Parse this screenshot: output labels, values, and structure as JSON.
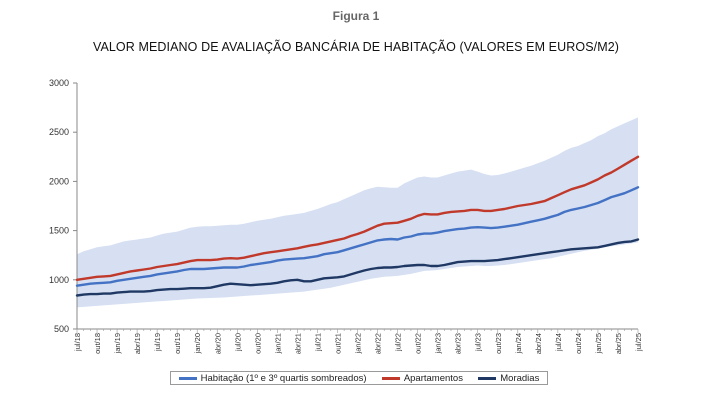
{
  "figure_label": "Figura 1",
  "chart_data": {
    "type": "line",
    "title": "VALOR MEDIANO DE AVALIAÇÃO BANCÁRIA DE HABITAÇÃO (VALORES EM EUROS/M2)",
    "xlabel": "",
    "ylabel": "",
    "ylim": [
      500,
      3000
    ],
    "yticks": [
      500,
      1000,
      1500,
      2000,
      2500,
      3000
    ],
    "x_start": "jul/18",
    "x_tick_labels": [
      "jul/18",
      "out/18",
      "jan/19",
      "abr/19",
      "jul/19",
      "out/19",
      "jan/20",
      "abr/20",
      "jul/20",
      "out/20",
      "jan/21",
      "abr/21",
      "jul/21",
      "out/21",
      "jan/22",
      "abr/22",
      "jul/22",
      "out/22",
      "jan/23",
      "abr/23",
      "jul/23",
      "out/23",
      "jan/24",
      "abr/24",
      "jul/24",
      "out/24",
      "jan/25",
      "abr/25",
      "jul/25"
    ],
    "grid": false,
    "legend_position": "bottom",
    "legend": [
      {
        "label": "Habitação (1º e 3º quartis sombreados)",
        "color": "#4472c4"
      },
      {
        "label": "Apartamentos",
        "color": "#c0392b"
      },
      {
        "label": "Moradias",
        "color": "#1f3864"
      }
    ],
    "series": [
      {
        "name": "Habitação (1º e 3º quartis sombreados)",
        "color": "#4472c4",
        "values": [
          940,
          950,
          960,
          965,
          970,
          975,
          990,
          1000,
          1010,
          1020,
          1030,
          1040,
          1055,
          1065,
          1075,
          1085,
          1100,
          1110,
          1110,
          1110,
          1115,
          1120,
          1125,
          1125,
          1125,
          1135,
          1150,
          1160,
          1170,
          1180,
          1195,
          1205,
          1210,
          1215,
          1220,
          1230,
          1240,
          1260,
          1270,
          1280,
          1300,
          1320,
          1340,
          1360,
          1380,
          1400,
          1410,
          1415,
          1410,
          1430,
          1440,
          1460,
          1470,
          1470,
          1480,
          1495,
          1505,
          1515,
          1520,
          1530,
          1535,
          1530,
          1525,
          1530,
          1540,
          1550,
          1560,
          1575,
          1590,
          1605,
          1620,
          1640,
          1660,
          1690,
          1710,
          1725,
          1740,
          1760,
          1780,
          1810,
          1840,
          1860,
          1880,
          1910,
          1940
        ]
      },
      {
        "name": "Apartamentos",
        "color": "#c0392b",
        "values": [
          1000,
          1010,
          1020,
          1030,
          1035,
          1040,
          1055,
          1070,
          1085,
          1095,
          1105,
          1115,
          1130,
          1140,
          1150,
          1160,
          1175,
          1190,
          1200,
          1200,
          1200,
          1205,
          1215,
          1220,
          1215,
          1225,
          1240,
          1255,
          1270,
          1280,
          1290,
          1300,
          1310,
          1320,
          1335,
          1350,
          1360,
          1375,
          1390,
          1405,
          1420,
          1445,
          1465,
          1490,
          1520,
          1550,
          1570,
          1575,
          1580,
          1600,
          1620,
          1650,
          1670,
          1665,
          1665,
          1680,
          1690,
          1695,
          1700,
          1710,
          1710,
          1700,
          1700,
          1710,
          1720,
          1735,
          1750,
          1760,
          1770,
          1785,
          1800,
          1830,
          1860,
          1890,
          1920,
          1940,
          1960,
          1990,
          2020,
          2060,
          2090,
          2130,
          2170,
          2210,
          2250
        ]
      },
      {
        "name": "Moradias",
        "color": "#1f3864",
        "values": [
          840,
          850,
          855,
          855,
          860,
          860,
          870,
          875,
          880,
          880,
          880,
          885,
          895,
          900,
          905,
          905,
          910,
          915,
          915,
          915,
          920,
          935,
          950,
          960,
          955,
          950,
          945,
          950,
          955,
          960,
          970,
          985,
          995,
          1000,
          985,
          985,
          1000,
          1015,
          1020,
          1025,
          1035,
          1055,
          1075,
          1095,
          1110,
          1120,
          1125,
          1125,
          1130,
          1140,
          1145,
          1150,
          1150,
          1140,
          1140,
          1150,
          1165,
          1180,
          1185,
          1190,
          1190,
          1190,
          1195,
          1200,
          1210,
          1220,
          1230,
          1240,
          1250,
          1260,
          1270,
          1280,
          1290,
          1300,
          1310,
          1315,
          1320,
          1325,
          1330,
          1345,
          1360,
          1375,
          1385,
          1390,
          1410
        ]
      }
    ],
    "band": {
      "name": "1º e 3º quartis",
      "color": "#d6e0f2",
      "lower": [
        720,
        725,
        730,
        735,
        740,
        745,
        750,
        755,
        760,
        765,
        770,
        775,
        780,
        785,
        790,
        795,
        800,
        805,
        810,
        812,
        815,
        818,
        820,
        825,
        830,
        835,
        840,
        845,
        850,
        855,
        860,
        865,
        870,
        875,
        880,
        890,
        900,
        910,
        920,
        935,
        950,
        965,
        980,
        995,
        1010,
        1020,
        1030,
        1035,
        1040,
        1050,
        1060,
        1075,
        1090,
        1095,
        1100,
        1110,
        1120,
        1130,
        1135,
        1140,
        1145,
        1140,
        1140,
        1145,
        1150,
        1160,
        1170,
        1180,
        1190,
        1200,
        1210,
        1220,
        1235,
        1250,
        1265,
        1280,
        1295,
        1305,
        1315,
        1330,
        1340,
        1350,
        1360,
        1370,
        1380
      ],
      "upper": [
        1260,
        1290,
        1310,
        1330,
        1340,
        1350,
        1370,
        1390,
        1400,
        1410,
        1420,
        1430,
        1450,
        1470,
        1480,
        1490,
        1510,
        1530,
        1540,
        1545,
        1545,
        1550,
        1555,
        1560,
        1560,
        1570,
        1585,
        1600,
        1610,
        1620,
        1635,
        1650,
        1660,
        1670,
        1680,
        1700,
        1720,
        1745,
        1770,
        1790,
        1820,
        1850,
        1880,
        1910,
        1930,
        1945,
        1940,
        1935,
        1935,
        1980,
        2010,
        2040,
        2050,
        2040,
        2040,
        2060,
        2080,
        2100,
        2110,
        2120,
        2100,
        2075,
        2060,
        2065,
        2080,
        2100,
        2120,
        2140,
        2160,
        2185,
        2210,
        2240,
        2270,
        2310,
        2340,
        2360,
        2390,
        2420,
        2460,
        2490,
        2530,
        2560,
        2590,
        2620,
        2650
      ]
    }
  }
}
